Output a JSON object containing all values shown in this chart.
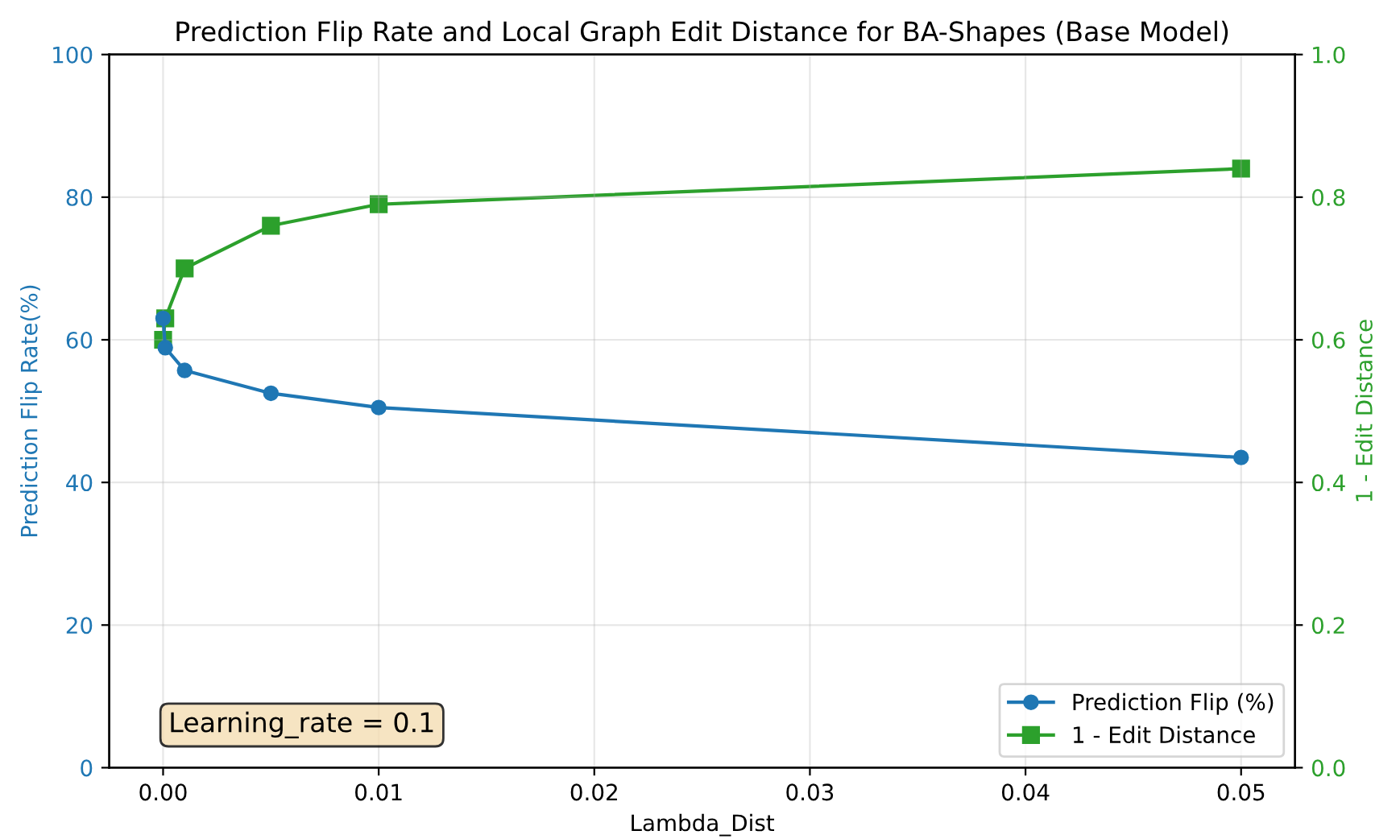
{
  "chart_data": {
    "type": "line",
    "title": "Prediction Flip Rate and Local Graph Edit Distance for BA-Shapes (Base Model)",
    "xlabel": "Lambda_Dist",
    "ylabel": "Prediction Flip Rate(%)",
    "y2label": "1 - Edit Distance",
    "x": [
      0,
      0.0001,
      0.001,
      0.005,
      0.01,
      0.05
    ],
    "series": [
      {
        "name": "Prediction Flip (%)",
        "color": "#1f77b4",
        "marker": "circle",
        "values": [
          63,
          58.9,
          55.7,
          52.5,
          50.5,
          43.5
        ]
      },
      {
        "name": "1 - Edit Distance",
        "color": "#2ca02c",
        "marker": "square",
        "axis": "y2",
        "values": [
          0.6,
          0.63,
          0.7,
          0.76,
          0.79,
          0.84
        ]
      }
    ],
    "xlim": [
      -0.0025,
      0.0525
    ],
    "xticks": [
      {
        "value": 0,
        "label": "0.00"
      },
      {
        "value": 0.01,
        "label": "0.01"
      },
      {
        "value": 0.02,
        "label": "0.02"
      },
      {
        "value": 0.03,
        "label": "0.03"
      },
      {
        "value": 0.04,
        "label": "0.04"
      },
      {
        "value": 0.05,
        "label": "0.05"
      }
    ],
    "ylim": [
      0,
      100
    ],
    "yticks": [
      0,
      20,
      40,
      60,
      80,
      100
    ],
    "y2lim": [
      0,
      1
    ],
    "y2ticks": [
      {
        "value": 0,
        "label": "0.0"
      },
      {
        "value": 0.2,
        "label": "0.2"
      },
      {
        "value": 0.4,
        "label": "0.4"
      },
      {
        "value": 0.6,
        "label": "0.6"
      },
      {
        "value": 0.8,
        "label": "0.8"
      },
      {
        "value": 1,
        "label": "1.0"
      }
    ],
    "annotations": [
      "Learning_rate = 0.1"
    ],
    "grid": true,
    "legend": "bottom right",
    "line_style": "solid"
  }
}
